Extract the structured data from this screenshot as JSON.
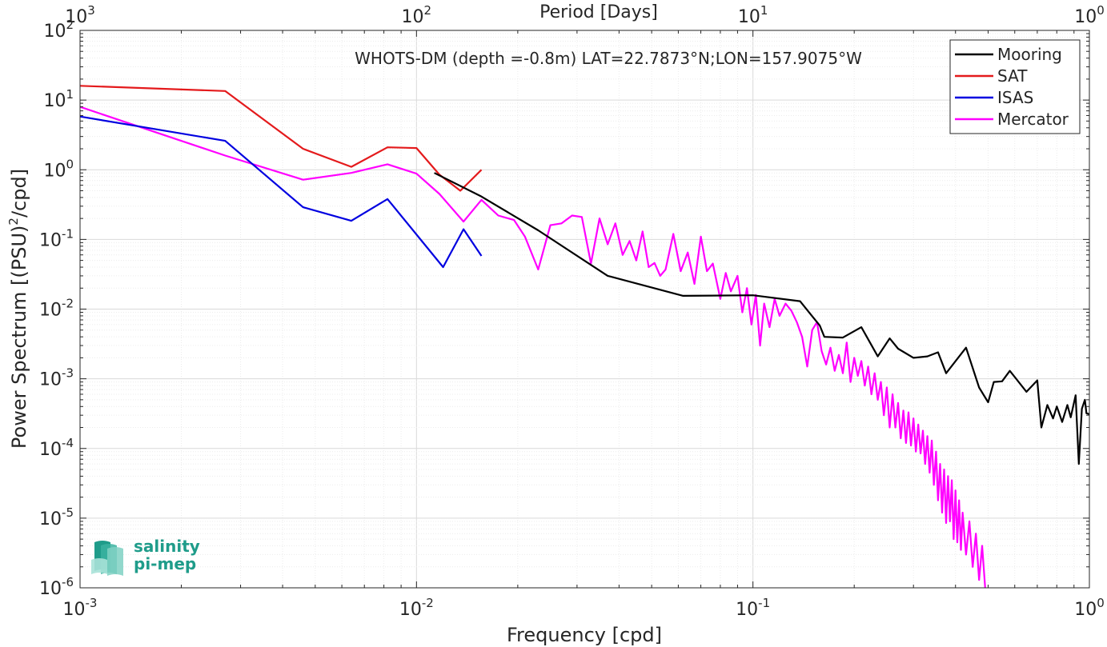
{
  "chart_data": {
    "type": "line",
    "title": "WHOTS-DM (depth =-0.8m) LAT=22.7873°N;LON=157.9075°W",
    "xlabel": "Frequency [cpd]",
    "ylabel_main": "Power Spectrum [(PSU)",
    "ylabel_sup": "2",
    "ylabel_tail": "/cpd]",
    "top_xlabel": "Period [Days]",
    "xscale": "log",
    "yscale": "log",
    "xlim": [
      0.001,
      1
    ],
    "ylim": [
      1e-06,
      100
    ],
    "grid": true,
    "legend_position": "top-right",
    "x_tick_labels": [
      {
        "base": "10",
        "exp": "-3",
        "value": 0.001
      },
      {
        "base": "10",
        "exp": "-2",
        "value": 0.01
      },
      {
        "base": "10",
        "exp": "-1",
        "value": 0.1
      },
      {
        "base": "10",
        "exp": "0",
        "value": 1
      }
    ],
    "top_tick_labels": [
      {
        "base": "10",
        "exp": "3",
        "value": 0.001
      },
      {
        "base": "10",
        "exp": "2",
        "value": 0.01
      },
      {
        "base": "10",
        "exp": "1",
        "value": 0.1
      },
      {
        "base": "10",
        "exp": "0",
        "value": 1
      }
    ],
    "y_tick_labels": [
      {
        "base": "10",
        "exp": "-6",
        "value": 1e-06
      },
      {
        "base": "10",
        "exp": "-5",
        "value": 1e-05
      },
      {
        "base": "10",
        "exp": "-4",
        "value": 0.0001
      },
      {
        "base": "10",
        "exp": "-3",
        "value": 0.001
      },
      {
        "base": "10",
        "exp": "-2",
        "value": 0.01
      },
      {
        "base": "10",
        "exp": "-1",
        "value": 0.1
      },
      {
        "base": "10",
        "exp": "0",
        "value": 1
      },
      {
        "base": "10",
        "exp": "1",
        "value": 10
      },
      {
        "base": "10",
        "exp": "2",
        "value": 100
      }
    ],
    "series": [
      {
        "name": "Mooring",
        "color": "#000000",
        "points": [
          [
            0.0113,
            0.9
          ],
          [
            0.0155,
            0.42
          ],
          [
            0.023,
            0.135
          ],
          [
            0.037,
            0.03
          ],
          [
            0.062,
            0.0155
          ],
          [
            0.1,
            0.0158
          ],
          [
            0.138,
            0.013
          ],
          [
            0.158,
            0.0058
          ],
          [
            0.163,
            0.004
          ],
          [
            0.185,
            0.0039
          ],
          [
            0.21,
            0.0055
          ],
          [
            0.235,
            0.0021
          ],
          [
            0.255,
            0.0038
          ],
          [
            0.27,
            0.0027
          ],
          [
            0.3,
            0.002
          ],
          [
            0.33,
            0.0021
          ],
          [
            0.355,
            0.0024
          ],
          [
            0.375,
            0.0012
          ],
          [
            0.43,
            0.0028
          ],
          [
            0.47,
            0.00075
          ],
          [
            0.5,
            0.00046
          ],
          [
            0.52,
            0.0009
          ],
          [
            0.55,
            0.00092
          ],
          [
            0.58,
            0.0013
          ],
          [
            0.65,
            0.00065
          ],
          [
            0.7,
            0.00095
          ],
          [
            0.72,
            0.0002
          ],
          [
            0.75,
            0.00042
          ],
          [
            0.78,
            0.00027
          ],
          [
            0.8,
            0.0004
          ],
          [
            0.83,
            0.00024
          ],
          [
            0.86,
            0.00042
          ],
          [
            0.88,
            0.00028
          ],
          [
            0.91,
            0.00058
          ],
          [
            0.93,
            6e-05
          ],
          [
            0.95,
            0.00037
          ],
          [
            0.97,
            0.0005
          ],
          [
            0.98,
            0.00032
          ],
          [
            1.0,
            0.00031
          ]
        ]
      },
      {
        "name": "SAT",
        "color": "#e41a1c",
        "points": [
          [
            0.001,
            16.0
          ],
          [
            0.0027,
            13.5
          ],
          [
            0.0046,
            2.0
          ],
          [
            0.0064,
            1.1
          ],
          [
            0.0082,
            2.1
          ],
          [
            0.01,
            2.05
          ],
          [
            0.0117,
            0.85
          ],
          [
            0.0135,
            0.5
          ],
          [
            0.0156,
            1.0
          ]
        ]
      },
      {
        "name": "ISAS",
        "color": "#0000e0",
        "points": [
          [
            0.001,
            5.8
          ],
          [
            0.0027,
            2.6
          ],
          [
            0.0046,
            0.29
          ],
          [
            0.0064,
            0.185
          ],
          [
            0.0082,
            0.38
          ],
          [
            0.012,
            0.04
          ],
          [
            0.0138,
            0.14
          ],
          [
            0.0156,
            0.058
          ]
        ]
      },
      {
        "name": "Mercator",
        "color": "#ff00ff",
        "points": [
          [
            0.001,
            8.0
          ],
          [
            0.0027,
            1.6
          ],
          [
            0.0046,
            0.72
          ],
          [
            0.0064,
            0.9
          ],
          [
            0.0082,
            1.2
          ],
          [
            0.01,
            0.88
          ],
          [
            0.0117,
            0.45
          ],
          [
            0.0138,
            0.18
          ],
          [
            0.0156,
            0.37
          ],
          [
            0.0175,
            0.22
          ],
          [
            0.0195,
            0.19
          ],
          [
            0.021,
            0.11
          ],
          [
            0.023,
            0.037
          ],
          [
            0.025,
            0.16
          ],
          [
            0.027,
            0.17
          ],
          [
            0.029,
            0.22
          ],
          [
            0.031,
            0.21
          ],
          [
            0.033,
            0.045
          ],
          [
            0.035,
            0.2
          ],
          [
            0.037,
            0.085
          ],
          [
            0.039,
            0.17
          ],
          [
            0.041,
            0.06
          ],
          [
            0.043,
            0.095
          ],
          [
            0.045,
            0.05
          ],
          [
            0.047,
            0.13
          ],
          [
            0.049,
            0.04
          ],
          [
            0.051,
            0.046
          ],
          [
            0.053,
            0.03
          ],
          [
            0.055,
            0.037
          ],
          [
            0.058,
            0.12
          ],
          [
            0.061,
            0.035
          ],
          [
            0.064,
            0.065
          ],
          [
            0.067,
            0.023
          ],
          [
            0.07,
            0.11
          ],
          [
            0.073,
            0.035
          ],
          [
            0.076,
            0.045
          ],
          [
            0.08,
            0.014
          ],
          [
            0.083,
            0.033
          ],
          [
            0.086,
            0.018
          ],
          [
            0.09,
            0.03
          ],
          [
            0.093,
            0.009
          ],
          [
            0.096,
            0.02
          ],
          [
            0.099,
            0.006
          ],
          [
            0.102,
            0.016
          ],
          [
            0.105,
            0.003
          ],
          [
            0.108,
            0.012
          ],
          [
            0.112,
            0.0055
          ],
          [
            0.116,
            0.014
          ],
          [
            0.12,
            0.008
          ],
          [
            0.125,
            0.012
          ],
          [
            0.13,
            0.0095
          ],
          [
            0.135,
            0.0065
          ],
          [
            0.14,
            0.004
          ],
          [
            0.145,
            0.0015
          ],
          [
            0.15,
            0.005
          ],
          [
            0.155,
            0.0065
          ],
          [
            0.16,
            0.0025
          ],
          [
            0.165,
            0.0016
          ],
          [
            0.17,
            0.0028
          ],
          [
            0.175,
            0.0013
          ],
          [
            0.18,
            0.0022
          ],
          [
            0.185,
            0.0012
          ],
          [
            0.19,
            0.0033
          ],
          [
            0.195,
            0.0009
          ],
          [
            0.2,
            0.002
          ],
          [
            0.205,
            0.0011
          ],
          [
            0.21,
            0.0018
          ],
          [
            0.215,
            0.0008
          ],
          [
            0.22,
            0.0015
          ],
          [
            0.225,
            0.0006
          ],
          [
            0.23,
            0.0012
          ],
          [
            0.235,
            0.0005
          ],
          [
            0.24,
            0.0009
          ],
          [
            0.245,
            0.0003
          ],
          [
            0.25,
            0.00075
          ],
          [
            0.255,
            0.0002
          ],
          [
            0.26,
            0.0006
          ],
          [
            0.265,
            0.0002
          ],
          [
            0.27,
            0.00045
          ],
          [
            0.275,
            0.00014
          ],
          [
            0.28,
            0.00035
          ],
          [
            0.285,
            0.00012
          ],
          [
            0.29,
            0.00033
          ],
          [
            0.295,
            0.00011
          ],
          [
            0.3,
            0.00027
          ],
          [
            0.305,
            9e-05
          ],
          [
            0.31,
            0.00022
          ],
          [
            0.315,
            8.5e-05
          ],
          [
            0.32,
            0.00018
          ],
          [
            0.325,
            6e-05
          ],
          [
            0.33,
            0.00015
          ],
          [
            0.335,
            4.5e-05
          ],
          [
            0.34,
            0.00013
          ],
          [
            0.345,
            3e-05
          ],
          [
            0.35,
            9e-05
          ],
          [
            0.355,
            1.8e-05
          ],
          [
            0.36,
            6e-05
          ],
          [
            0.365,
            1.2e-05
          ],
          [
            0.37,
            5e-05
          ],
          [
            0.375,
            8.5e-06
          ],
          [
            0.38,
            4e-05
          ],
          [
            0.385,
            9e-06
          ],
          [
            0.39,
            3.5e-05
          ],
          [
            0.395,
            5e-06
          ],
          [
            0.4,
            2.5e-05
          ],
          [
            0.405,
            4.5e-06
          ],
          [
            0.41,
            1.8e-05
          ],
          [
            0.415,
            3.5e-06
          ],
          [
            0.42,
            1.2e-05
          ],
          [
            0.43,
            3e-06
          ],
          [
            0.44,
            9e-06
          ],
          [
            0.45,
            2e-06
          ],
          [
            0.46,
            6e-06
          ],
          [
            0.47,
            1.3e-06
          ],
          [
            0.48,
            4e-06
          ],
          [
            0.49,
            1e-06
          ]
        ]
      }
    ]
  },
  "logo": {
    "line1": "salinity",
    "line2": "pi-mep",
    "color": "#1f9c8a"
  }
}
